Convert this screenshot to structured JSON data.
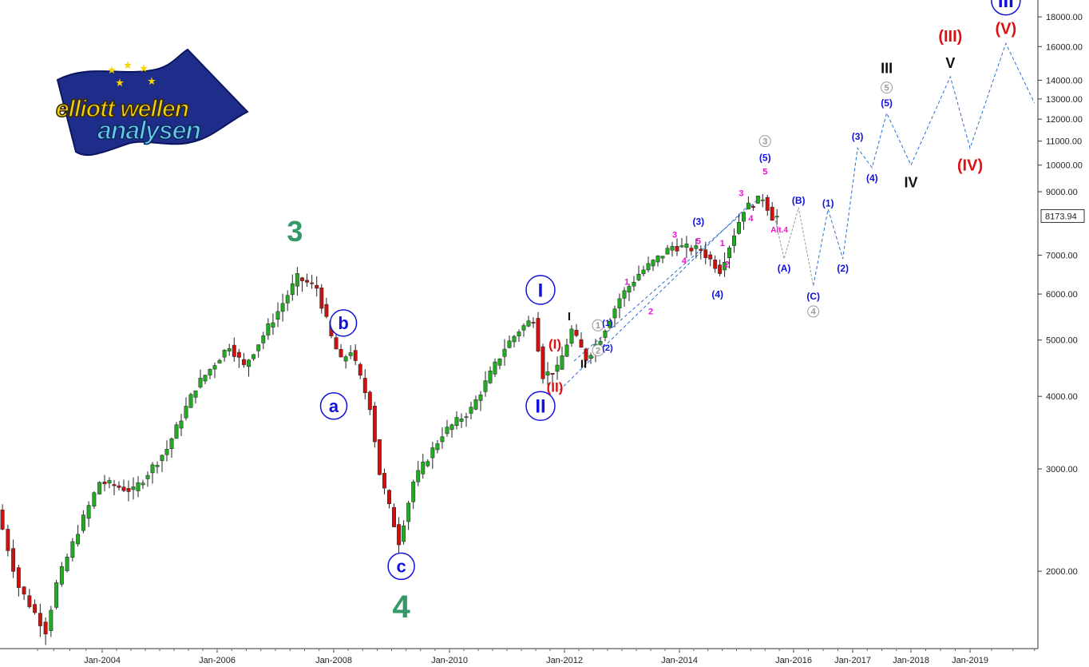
{
  "chart_data": {
    "type": "candlestick",
    "title": "",
    "scale": "log",
    "ylim": [
      1500,
      19000
    ],
    "xlim": [
      "2002-06",
      "2019-10"
    ],
    "last_price": "8173.94",
    "x_ticks": [
      "Jan-2004",
      "Jan-2006",
      "Jan-2008",
      "Jan-2010",
      "Jan-2012",
      "Jan-2014",
      "Jan-2016",
      "Jan-2017",
      "Jan-2018",
      "Jan-2019"
    ],
    "y_ticks": [
      {
        "v": 2000,
        "label": "2000.00"
      },
      {
        "v": 3000,
        "label": "3000.00"
      },
      {
        "v": 4000,
        "label": "4000.00"
      },
      {
        "v": 5000,
        "label": "5000.00"
      },
      {
        "v": 6000,
        "label": "6000.00"
      },
      {
        "v": 7000,
        "label": "7000.00"
      },
      {
        "v": 9000,
        "label": "9000.00"
      },
      {
        "v": 10000,
        "label": "10000.00"
      },
      {
        "v": 11000,
        "label": "11000.00"
      },
      {
        "v": 12000,
        "label": "12000.00"
      },
      {
        "v": 13000,
        "label": "13000.00"
      },
      {
        "v": 14000,
        "label": "14000.00"
      },
      {
        "v": 16000,
        "label": "16000.00"
      },
      {
        "v": 18000,
        "label": "18000.00"
      }
    ],
    "price_path": [
      [
        "2002-06",
        2550
      ],
      [
        "2002-10",
        1880
      ],
      [
        "2003-03",
        1580
      ],
      [
        "2003-05",
        1900
      ],
      [
        "2003-09",
        2350
      ],
      [
        "2004-01",
        2850
      ],
      [
        "2004-08",
        2750
      ],
      [
        "2005-03",
        3250
      ],
      [
        "2005-09",
        4150
      ],
      [
        "2006-04",
        4900
      ],
      [
        "2006-07",
        4500
      ],
      [
        "2007-02",
        5600
      ],
      [
        "2007-06",
        6400
      ],
      [
        "2007-10",
        6150
      ],
      [
        "2008-01",
        5050
      ],
      [
        "2008-03",
        4600
      ],
      [
        "2008-05",
        4800
      ],
      [
        "2008-09",
        3850
      ],
      [
        "2008-11",
        2950
      ],
      [
        "2009-03",
        2250
      ],
      [
        "2009-06",
        2850
      ],
      [
        "2009-12",
        3450
      ],
      [
        "2010-06",
        3800
      ],
      [
        "2011-01",
        4850
      ],
      [
        "2011-04",
        5200
      ],
      [
        "2011-07",
        5450
      ],
      [
        "2011-09",
        4350
      ],
      [
        "2011-12",
        4450
      ],
      [
        "2012-03",
        5200
      ],
      [
        "2012-06",
        4650
      ],
      [
        "2012-09",
        5050
      ],
      [
        "2013-01",
        5900
      ],
      [
        "2013-05",
        6500
      ],
      [
        "2013-12",
        7250
      ],
      [
        "2014-06",
        7150
      ],
      [
        "2014-10",
        6600
      ],
      [
        "2015-03",
        8400
      ],
      [
        "2015-07",
        8800
      ],
      [
        "2015-09",
        8150
      ]
    ],
    "forecast_grey": [
      [
        "2015-09",
        8150
      ],
      [
        "2015-11",
        6900
      ],
      [
        "2016-02",
        8450
      ],
      [
        "2016-05",
        6200
      ]
    ],
    "forecast_blue": [
      [
        "2016-05",
        6200
      ],
      [
        "2016-08",
        8400
      ],
      [
        "2016-11",
        6900
      ],
      [
        "2017-02",
        10700
      ],
      [
        "2017-05",
        9900
      ],
      [
        "2017-08",
        12300
      ],
      [
        "2018-01",
        10000
      ],
      [
        "2018-09",
        14200
      ],
      [
        "2019-01",
        10700
      ],
      [
        "2019-06",
        16200
      ],
      [
        "2019-10",
        12800
      ]
    ],
    "channel_lines": [
      [
        [
          "2011-12",
          4100
        ],
        [
          "2015-04",
          8600
        ]
      ],
      [
        [
          "2012-03",
          4600
        ],
        [
          "2015-06",
          8800
        ]
      ]
    ],
    "wave_labels": [
      {
        "text": "3",
        "t": "2007-05",
        "v": 7700,
        "color": "#339966",
        "size": 36,
        "style": "plain"
      },
      {
        "text": "4",
        "t": "2009-03",
        "v": 1740,
        "color": "#339966",
        "size": 40,
        "style": "plain"
      },
      {
        "text": "a",
        "t": "2008-01",
        "v": 3850,
        "color": "#1111dd",
        "size": 22,
        "style": "circle"
      },
      {
        "text": "b",
        "t": "2008-03",
        "v": 5350,
        "color": "#1111dd",
        "size": 22,
        "style": "circle"
      },
      {
        "text": "c",
        "t": "2009-03",
        "v": 2040,
        "color": "#1111dd",
        "size": 22,
        "style": "circle"
      },
      {
        "text": "I",
        "t": "2011-08",
        "v": 6100,
        "color": "#1111dd",
        "size": 24,
        "style": "circle"
      },
      {
        "text": "II",
        "t": "2011-08",
        "v": 3850,
        "color": "#1111dd",
        "size": 24,
        "style": "circle"
      },
      {
        "text": "(I)",
        "t": "2011-11",
        "v": 4920,
        "color": "#dd1111",
        "size": 17,
        "style": "plain"
      },
      {
        "text": "(II)",
        "t": "2011-11",
        "v": 4150,
        "color": "#dd1111",
        "size": 17,
        "style": "plain"
      },
      {
        "text": "I",
        "t": "2012-02",
        "v": 5500,
        "color": "#111111",
        "size": 15,
        "style": "plain"
      },
      {
        "text": "II",
        "t": "2012-05",
        "v": 4550,
        "color": "#111111",
        "size": 15,
        "style": "plain"
      },
      {
        "text": "1",
        "t": "2012-08",
        "v": 5300,
        "color": "#999999",
        "size": 11,
        "style": "circle-small"
      },
      {
        "text": "2",
        "t": "2012-08",
        "v": 4800,
        "color": "#999999",
        "size": 11,
        "style": "circle-small"
      },
      {
        "text": "(1)",
        "t": "2012-10",
        "v": 5350,
        "color": "#1111dd",
        "size": 11,
        "style": "plain"
      },
      {
        "text": "(2)",
        "t": "2012-10",
        "v": 4850,
        "color": "#1111dd",
        "size": 11,
        "style": "plain"
      },
      {
        "text": "1",
        "t": "2013-02",
        "v": 6300,
        "color": "#ee11cc",
        "size": 11,
        "style": "plain"
      },
      {
        "text": "2",
        "t": "2013-07",
        "v": 5600,
        "color": "#ee11cc",
        "size": 11,
        "style": "plain"
      },
      {
        "text": "3",
        "t": "2013-12",
        "v": 7600,
        "color": "#ee11cc",
        "size": 11,
        "style": "plain"
      },
      {
        "text": "4",
        "t": "2014-02",
        "v": 6850,
        "color": "#ee11cc",
        "size": 11,
        "style": "plain"
      },
      {
        "text": "5",
        "t": "2014-05",
        "v": 7400,
        "color": "#ee11cc",
        "size": 11,
        "style": "plain"
      },
      {
        "text": "(3)",
        "t": "2014-05",
        "v": 8000,
        "color": "#1111dd",
        "size": 12,
        "style": "plain"
      },
      {
        "text": "(4)",
        "t": "2014-09",
        "v": 6000,
        "color": "#1111dd",
        "size": 12,
        "style": "plain"
      },
      {
        "text": "1",
        "t": "2014-10",
        "v": 7350,
        "color": "#ee11cc",
        "size": 11,
        "style": "plain"
      },
      {
        "text": "2",
        "t": "2014-11",
        "v": 6750,
        "color": "#ee11cc",
        "size": 11,
        "style": "plain"
      },
      {
        "text": "3",
        "t": "2015-02",
        "v": 8950,
        "color": "#ee11cc",
        "size": 11,
        "style": "plain"
      },
      {
        "text": "4",
        "t": "2015-04",
        "v": 8100,
        "color": "#ee11cc",
        "size": 11,
        "style": "plain"
      },
      {
        "text": "5",
        "t": "2015-07",
        "v": 9750,
        "color": "#ee11cc",
        "size": 11,
        "style": "plain"
      },
      {
        "text": "(5)",
        "t": "2015-07",
        "v": 10300,
        "color": "#1111dd",
        "size": 12,
        "style": "plain"
      },
      {
        "text": "3",
        "t": "2015-07",
        "v": 11000,
        "color": "#999999",
        "size": 11,
        "style": "circle-small"
      },
      {
        "text": "Alt.4",
        "t": "2015-10",
        "v": 7750,
        "color": "#ee11cc",
        "size": 10,
        "style": "plain"
      },
      {
        "text": "(A)",
        "t": "2015-11",
        "v": 6650,
        "color": "#1111dd",
        "size": 12,
        "style": "plain"
      },
      {
        "text": "(B)",
        "t": "2016-02",
        "v": 8700,
        "color": "#1111dd",
        "size": 12,
        "style": "plain"
      },
      {
        "text": "(C)",
        "t": "2016-05",
        "v": 5950,
        "color": "#1111dd",
        "size": 12,
        "style": "plain"
      },
      {
        "text": "4",
        "t": "2016-05",
        "v": 5600,
        "color": "#999999",
        "size": 11,
        "style": "circle-small"
      },
      {
        "text": "(1)",
        "t": "2016-08",
        "v": 8600,
        "color": "#1111dd",
        "size": 12,
        "style": "plain"
      },
      {
        "text": "(2)",
        "t": "2016-11",
        "v": 6650,
        "color": "#1111dd",
        "size": 12,
        "style": "plain"
      },
      {
        "text": "(3)",
        "t": "2017-02",
        "v": 11200,
        "color": "#1111dd",
        "size": 12,
        "style": "plain"
      },
      {
        "text": "(4)",
        "t": "2017-05",
        "v": 9500,
        "color": "#1111dd",
        "size": 12,
        "style": "plain"
      },
      {
        "text": "(5)",
        "t": "2017-08",
        "v": 12800,
        "color": "#1111dd",
        "size": 12,
        "style": "plain"
      },
      {
        "text": "5",
        "t": "2017-08",
        "v": 13600,
        "color": "#999999",
        "size": 11,
        "style": "circle-small"
      },
      {
        "text": "III",
        "t": "2017-08",
        "v": 14700,
        "color": "#111111",
        "size": 18,
        "style": "plain"
      },
      {
        "text": "IV",
        "t": "2018-01",
        "v": 9350,
        "color": "#111111",
        "size": 18,
        "style": "plain"
      },
      {
        "text": "V",
        "t": "2018-09",
        "v": 15000,
        "color": "#111111",
        "size": 18,
        "style": "plain"
      },
      {
        "text": "(III)",
        "t": "2018-09",
        "v": 16700,
        "color": "#dd1111",
        "size": 20,
        "style": "plain"
      },
      {
        "text": "(IV)",
        "t": "2019-01",
        "v": 10000,
        "color": "#dd1111",
        "size": 20,
        "style": "plain"
      },
      {
        "text": "(V)",
        "t": "2019-06",
        "v": 17200,
        "color": "#dd1111",
        "size": 20,
        "style": "plain"
      },
      {
        "text": "III",
        "t": "2019-06",
        "v": 19200,
        "color": "#1111dd",
        "size": 24,
        "style": "circle"
      }
    ]
  },
  "logo": {
    "line1": "elliott wellen",
    "line2": "analysen"
  }
}
